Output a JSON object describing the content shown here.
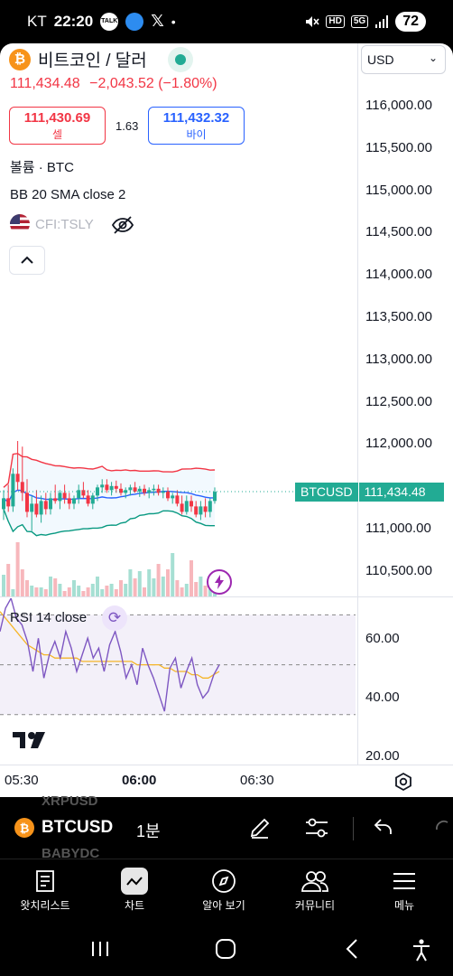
{
  "status_bar": {
    "carrier": "KT",
    "time": "22:20",
    "talk_icon_text": "TALK",
    "x_label": "𝕏",
    "dot": "•",
    "hd": "HD",
    "net": "5G",
    "battery": "72"
  },
  "symbol": {
    "name": "비트코인 / 달러",
    "logo": "₿",
    "price": "111,434.48",
    "change": "−2,043.52 (−1.80%)"
  },
  "trade": {
    "sell_price": "111,430.69",
    "sell_label": "셀",
    "spread": "1.63",
    "buy_price": "111,432.32",
    "buy_label": "바이"
  },
  "legends": {
    "volume": "볼륨 · BTC",
    "bb": "BB 20 SMA close 2",
    "compare": "CFI:TSLY"
  },
  "currency": {
    "value": "USD"
  },
  "price_ticks": [
    "116,000.00",
    "115,500.00",
    "115,000.00",
    "114,500.00",
    "114,000.00",
    "113,500.00",
    "113,000.00",
    "112,500.00",
    "112,000.00",
    "111,000.00",
    "110,500.00"
  ],
  "price_tag": {
    "symbol": "BTCUSD",
    "value": "111,434.48"
  },
  "rsi": {
    "label": "RSI 14 close",
    "ticks": [
      "60.00",
      "40.00",
      "20.00"
    ]
  },
  "time_ticks": [
    "05:30",
    "06:00",
    "06:30"
  ],
  "toolbar": {
    "symbol": "BTCUSD",
    "interval": "1분",
    "ghost_top": "XRPUSD",
    "ghost_bottom": "BABYDC"
  },
  "nav": {
    "watchlist": "왓치리스트",
    "chart": "차트",
    "explore": "알아 보기",
    "community": "커뮤니티",
    "menu": "메뉴"
  },
  "chart_data": {
    "type": "candlestick",
    "symbol": "BTCUSD",
    "interval": "1분",
    "last_price": 111434.48,
    "y_range": [
      110400,
      116100
    ],
    "indicators": [
      "Volume",
      "BB 20 SMA close 2",
      "RSI 14 close"
    ],
    "colors": {
      "up": "#22ab94",
      "down": "#f23645",
      "bb_upper": "#f23645",
      "bb_basis": "#2962ff",
      "bb_lower": "#089981",
      "rsi": "#7e57c2",
      "rsi_ma": "#f5b529"
    },
    "candles": [
      {
        "o": 111370,
        "h": 111440,
        "l": 111330,
        "c": 111410
      },
      {
        "o": 111410,
        "h": 111460,
        "l": 111360,
        "c": 111380
      },
      {
        "o": 111380,
        "h": 111520,
        "l": 111360,
        "c": 111500
      },
      {
        "o": 111500,
        "h": 111650,
        "l": 111440,
        "c": 111470
      },
      {
        "o": 111470,
        "h": 111600,
        "l": 111400,
        "c": 111430
      },
      {
        "o": 111430,
        "h": 111480,
        "l": 111340,
        "c": 111360
      },
      {
        "o": 111360,
        "h": 111420,
        "l": 111290,
        "c": 111390
      },
      {
        "o": 111390,
        "h": 111440,
        "l": 111340,
        "c": 111350
      },
      {
        "o": 111350,
        "h": 111420,
        "l": 111320,
        "c": 111400
      },
      {
        "o": 111400,
        "h": 111430,
        "l": 111350,
        "c": 111370
      },
      {
        "o": 111370,
        "h": 111430,
        "l": 111350,
        "c": 111410
      },
      {
        "o": 111410,
        "h": 111460,
        "l": 111390,
        "c": 111400
      },
      {
        "o": 111400,
        "h": 111440,
        "l": 111370,
        "c": 111430
      },
      {
        "o": 111430,
        "h": 111460,
        "l": 111390,
        "c": 111410
      },
      {
        "o": 111410,
        "h": 111430,
        "l": 111370,
        "c": 111390
      },
      {
        "o": 111390,
        "h": 111420,
        "l": 111370,
        "c": 111410
      },
      {
        "o": 111410,
        "h": 111460,
        "l": 111390,
        "c": 111440
      },
      {
        "o": 111440,
        "h": 111470,
        "l": 111410,
        "c": 111420
      },
      {
        "o": 111420,
        "h": 111440,
        "l": 111380,
        "c": 111390
      },
      {
        "o": 111390,
        "h": 111430,
        "l": 111370,
        "c": 111420
      },
      {
        "o": 111420,
        "h": 111460,
        "l": 111400,
        "c": 111450
      },
      {
        "o": 111450,
        "h": 111480,
        "l": 111430,
        "c": 111460
      },
      {
        "o": 111460,
        "h": 111480,
        "l": 111430,
        "c": 111440
      },
      {
        "o": 111440,
        "h": 111470,
        "l": 111420,
        "c": 111455
      },
      {
        "o": 111455,
        "h": 111475,
        "l": 111430,
        "c": 111445
      },
      {
        "o": 111445,
        "h": 111465,
        "l": 111420,
        "c": 111430
      },
      {
        "o": 111430,
        "h": 111450,
        "l": 111410,
        "c": 111440
      },
      {
        "o": 111440,
        "h": 111460,
        "l": 111420,
        "c": 111450
      },
      {
        "o": 111450,
        "h": 111470,
        "l": 111430,
        "c": 111435
      },
      {
        "o": 111435,
        "h": 111455,
        "l": 111415,
        "c": 111445
      },
      {
        "o": 111445,
        "h": 111460,
        "l": 111420,
        "c": 111430
      },
      {
        "o": 111430,
        "h": 111450,
        "l": 111410,
        "c": 111440
      },
      {
        "o": 111440,
        "h": 111460,
        "l": 111420,
        "c": 111445
      },
      {
        "o": 111445,
        "h": 111460,
        "l": 111420,
        "c": 111430
      },
      {
        "o": 111430,
        "h": 111450,
        "l": 111410,
        "c": 111435
      },
      {
        "o": 111435,
        "h": 111450,
        "l": 111400,
        "c": 111410
      },
      {
        "o": 111410,
        "h": 111430,
        "l": 111390,
        "c": 111420
      },
      {
        "o": 111420,
        "h": 111440,
        "l": 111380,
        "c": 111390
      },
      {
        "o": 111390,
        "h": 111420,
        "l": 111350,
        "c": 111360
      },
      {
        "o": 111360,
        "h": 111420,
        "l": 111350,
        "c": 111400
      },
      {
        "o": 111400,
        "h": 111420,
        "l": 111360,
        "c": 111380
      },
      {
        "o": 111380,
        "h": 111400,
        "l": 111340,
        "c": 111350
      },
      {
        "o": 111350,
        "h": 111400,
        "l": 111330,
        "c": 111380
      },
      {
        "o": 111380,
        "h": 111410,
        "l": 111340,
        "c": 111360
      },
      {
        "o": 111360,
        "h": 111410,
        "l": 111340,
        "c": 111400
      },
      {
        "o": 111400,
        "h": 111450,
        "l": 111390,
        "c": 111434
      }
    ],
    "volume": [
      24,
      36,
      8,
      60,
      30,
      18,
      12,
      10,
      10,
      8,
      22,
      20,
      14,
      6,
      10,
      18,
      12,
      6,
      10,
      14,
      22,
      8,
      12,
      14,
      8,
      18,
      14,
      30,
      20,
      28,
      10,
      30,
      20,
      36,
      22,
      30,
      48,
      18,
      10,
      14,
      40,
      16,
      22,
      12,
      8,
      16
    ],
    "rsi_values": [
      60,
      67,
      70,
      64,
      62,
      57,
      48,
      58,
      46,
      53,
      57,
      52,
      60,
      55,
      48,
      53,
      58,
      52,
      55,
      48,
      56,
      60,
      54,
      46,
      50,
      44,
      55,
      50,
      46,
      41,
      36,
      49,
      52,
      43,
      48,
      52,
      44,
      40,
      42,
      47,
      50
    ],
    "rsi_ma_values": [
      66,
      64,
      62,
      60,
      58,
      56,
      55,
      54,
      53,
      53,
      52,
      52,
      52,
      52,
      52,
      51,
      51,
      51,
      51,
      51,
      51,
      51,
      51,
      51,
      51,
      50,
      50,
      50,
      50,
      50,
      49,
      49,
      48,
      48,
      48,
      47,
      47,
      46,
      46,
      47,
      48
    ],
    "rsi_range": [
      20,
      70
    ]
  }
}
